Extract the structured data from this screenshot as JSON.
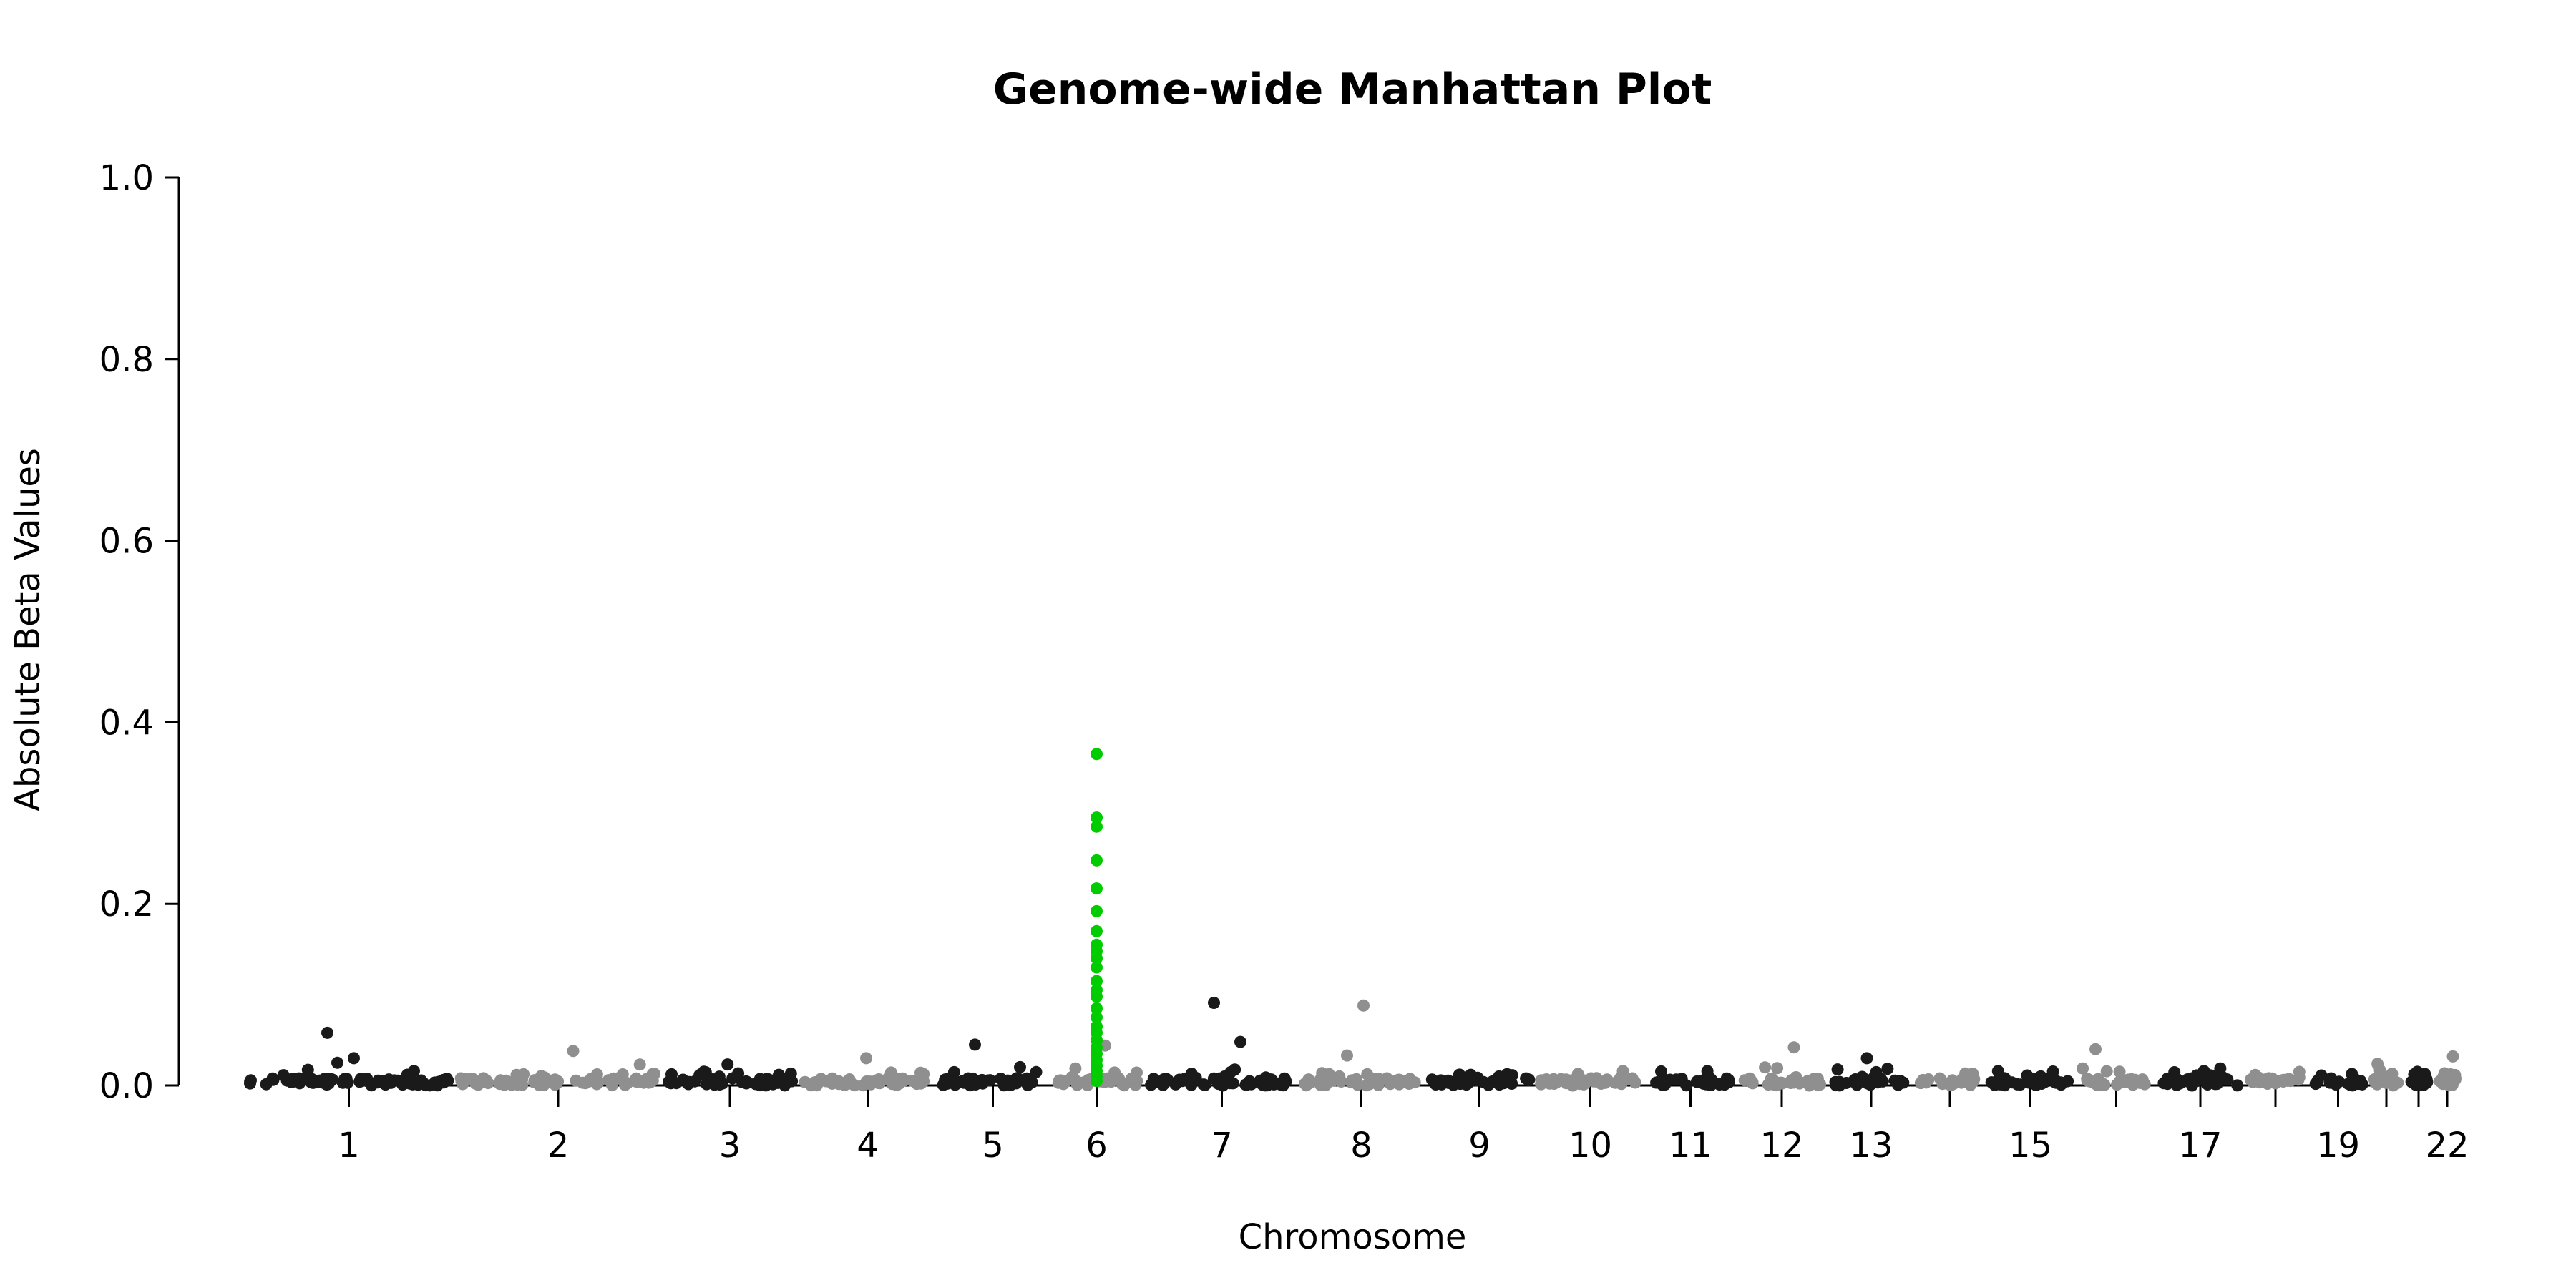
{
  "colors": {
    "dark": "#1a1a1a",
    "light": "#8f8f8f",
    "highlight": "#00cc00"
  },
  "chart_data": {
    "type": "scatter",
    "title": "Genome-wide Manhattan Plot",
    "xlabel": "Chromosome",
    "ylabel": "Absolute Beta Values",
    "ylim": [
      0,
      1
    ],
    "y_ticks": [
      "0.0",
      "0.2",
      "0.4",
      "0.6",
      "0.8",
      "1.0"
    ],
    "x_tick_labels": [
      "1",
      "2",
      "3",
      "4",
      "5",
      "6",
      "7",
      "8",
      "9",
      "10",
      "11",
      "12",
      "13",
      "15",
      "17",
      "19",
      "22"
    ],
    "grid": false,
    "legend": "none",
    "chromosomes": [
      "1",
      "2",
      "3",
      "4",
      "5",
      "6",
      "7",
      "8",
      "9",
      "10",
      "11",
      "12",
      "13",
      "14",
      "15",
      "16",
      "17",
      "18",
      "19",
      "20",
      "21",
      "22"
    ],
    "highlight_chromosome": "6",
    "notable_points": [
      {
        "chr": "1",
        "value": 0.058
      },
      {
        "chr": "1",
        "value": 0.03
      },
      {
        "chr": "1",
        "value": 0.025
      },
      {
        "chr": "2",
        "value": 0.038
      },
      {
        "chr": "4",
        "value": 0.03
      },
      {
        "chr": "5",
        "value": 0.045
      },
      {
        "chr": "6",
        "value": 0.044
      },
      {
        "chr": "7",
        "value": 0.091
      },
      {
        "chr": "7",
        "value": 0.048
      },
      {
        "chr": "8",
        "value": 0.088
      },
      {
        "chr": "8",
        "value": 0.033
      },
      {
        "chr": "12",
        "value": 0.042
      },
      {
        "chr": "13",
        "value": 0.03
      },
      {
        "chr": "16",
        "value": 0.04
      },
      {
        "chr": "22",
        "value": 0.032
      }
    ],
    "highlight_points": [
      {
        "chr": "6",
        "value": 0.365
      },
      {
        "chr": "6",
        "value": 0.295
      },
      {
        "chr": "6",
        "value": 0.285
      },
      {
        "chr": "6",
        "value": 0.248
      },
      {
        "chr": "6",
        "value": 0.217
      },
      {
        "chr": "6",
        "value": 0.192
      },
      {
        "chr": "6",
        "value": 0.17
      },
      {
        "chr": "6",
        "value": 0.155
      },
      {
        "chr": "6",
        "value": 0.148
      },
      {
        "chr": "6",
        "value": 0.14
      },
      {
        "chr": "6",
        "value": 0.13
      },
      {
        "chr": "6",
        "value": 0.115
      },
      {
        "chr": "6",
        "value": 0.105
      },
      {
        "chr": "6",
        "value": 0.098
      },
      {
        "chr": "6",
        "value": 0.085
      },
      {
        "chr": "6",
        "value": 0.075
      },
      {
        "chr": "6",
        "value": 0.065
      },
      {
        "chr": "6",
        "value": 0.058
      },
      {
        "chr": "6",
        "value": 0.05
      },
      {
        "chr": "6",
        "value": 0.042
      },
      {
        "chr": "6",
        "value": 0.035
      },
      {
        "chr": "6",
        "value": 0.028
      },
      {
        "chr": "6",
        "value": 0.022
      },
      {
        "chr": "6",
        "value": 0.016
      },
      {
        "chr": "6",
        "value": 0.01
      },
      {
        "chr": "6",
        "value": 0.005
      }
    ]
  }
}
